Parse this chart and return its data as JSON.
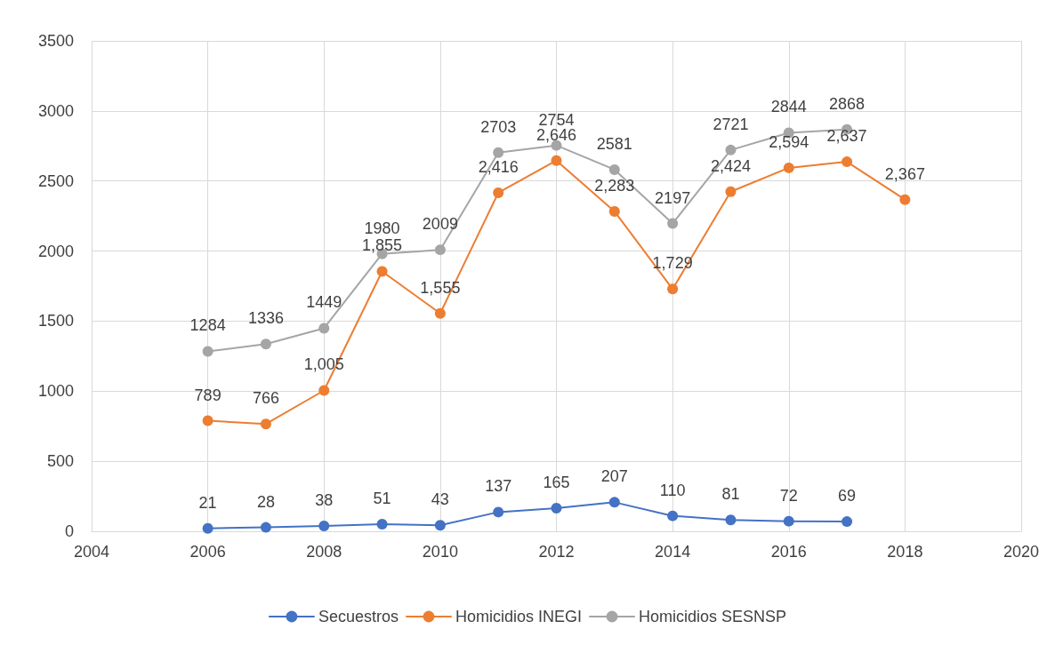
{
  "chart_data": {
    "type": "line",
    "xlim": [
      2004,
      2020
    ],
    "xticks": [
      2004,
      2006,
      2008,
      2010,
      2012,
      2014,
      2016,
      2018,
      2020
    ],
    "ylim": [
      0,
      3500
    ],
    "yticks": [
      0,
      500,
      1000,
      1500,
      2000,
      2500,
      3000,
      3500
    ],
    "grid": true,
    "legend": "bottom",
    "marker": "circle",
    "line_style": "solid",
    "series": [
      {
        "name": "Secuestros",
        "color": "#4472c4",
        "x": [
          2006,
          2007,
          2008,
          2009,
          2010,
          2011,
          2012,
          2013,
          2014,
          2015,
          2016,
          2017
        ],
        "values": [
          21,
          28,
          38,
          51,
          43,
          137,
          165,
          207,
          110,
          81,
          72,
          69
        ],
        "value_labels": [
          "21",
          "28",
          "38",
          "51",
          "43",
          "137",
          "165",
          "207",
          "110",
          "81",
          "72",
          "69"
        ]
      },
      {
        "name": "Homicidios INEGI",
        "color": "#ed7d31",
        "x": [
          2006,
          2007,
          2008,
          2009,
          2010,
          2011,
          2012,
          2013,
          2014,
          2015,
          2016,
          2017,
          2018
        ],
        "values": [
          789,
          766,
          1005,
          1855,
          1555,
          2416,
          2646,
          2283,
          1729,
          2424,
          2594,
          2637,
          2367
        ],
        "value_labels": [
          "789",
          "766",
          "1,005",
          "1,855",
          "1,555",
          "2,416",
          "2,646",
          "2,283",
          "1,729",
          "2,424",
          "2,594",
          "2,637",
          "2,367"
        ]
      },
      {
        "name": "Homicidios SESNSP",
        "color": "#a5a5a5",
        "x": [
          2006,
          2007,
          2008,
          2009,
          2010,
          2011,
          2012,
          2013,
          2014,
          2015,
          2016,
          2017
        ],
        "values": [
          1284,
          1336,
          1449,
          1980,
          2009,
          2703,
          2754,
          2581,
          2197,
          2721,
          2844,
          2868
        ],
        "value_labels": [
          "1284",
          "1336",
          "1449",
          "1980",
          "2009",
          "2703",
          "2754",
          "2581",
          "2197",
          "2721",
          "2844",
          "2868"
        ]
      }
    ]
  }
}
